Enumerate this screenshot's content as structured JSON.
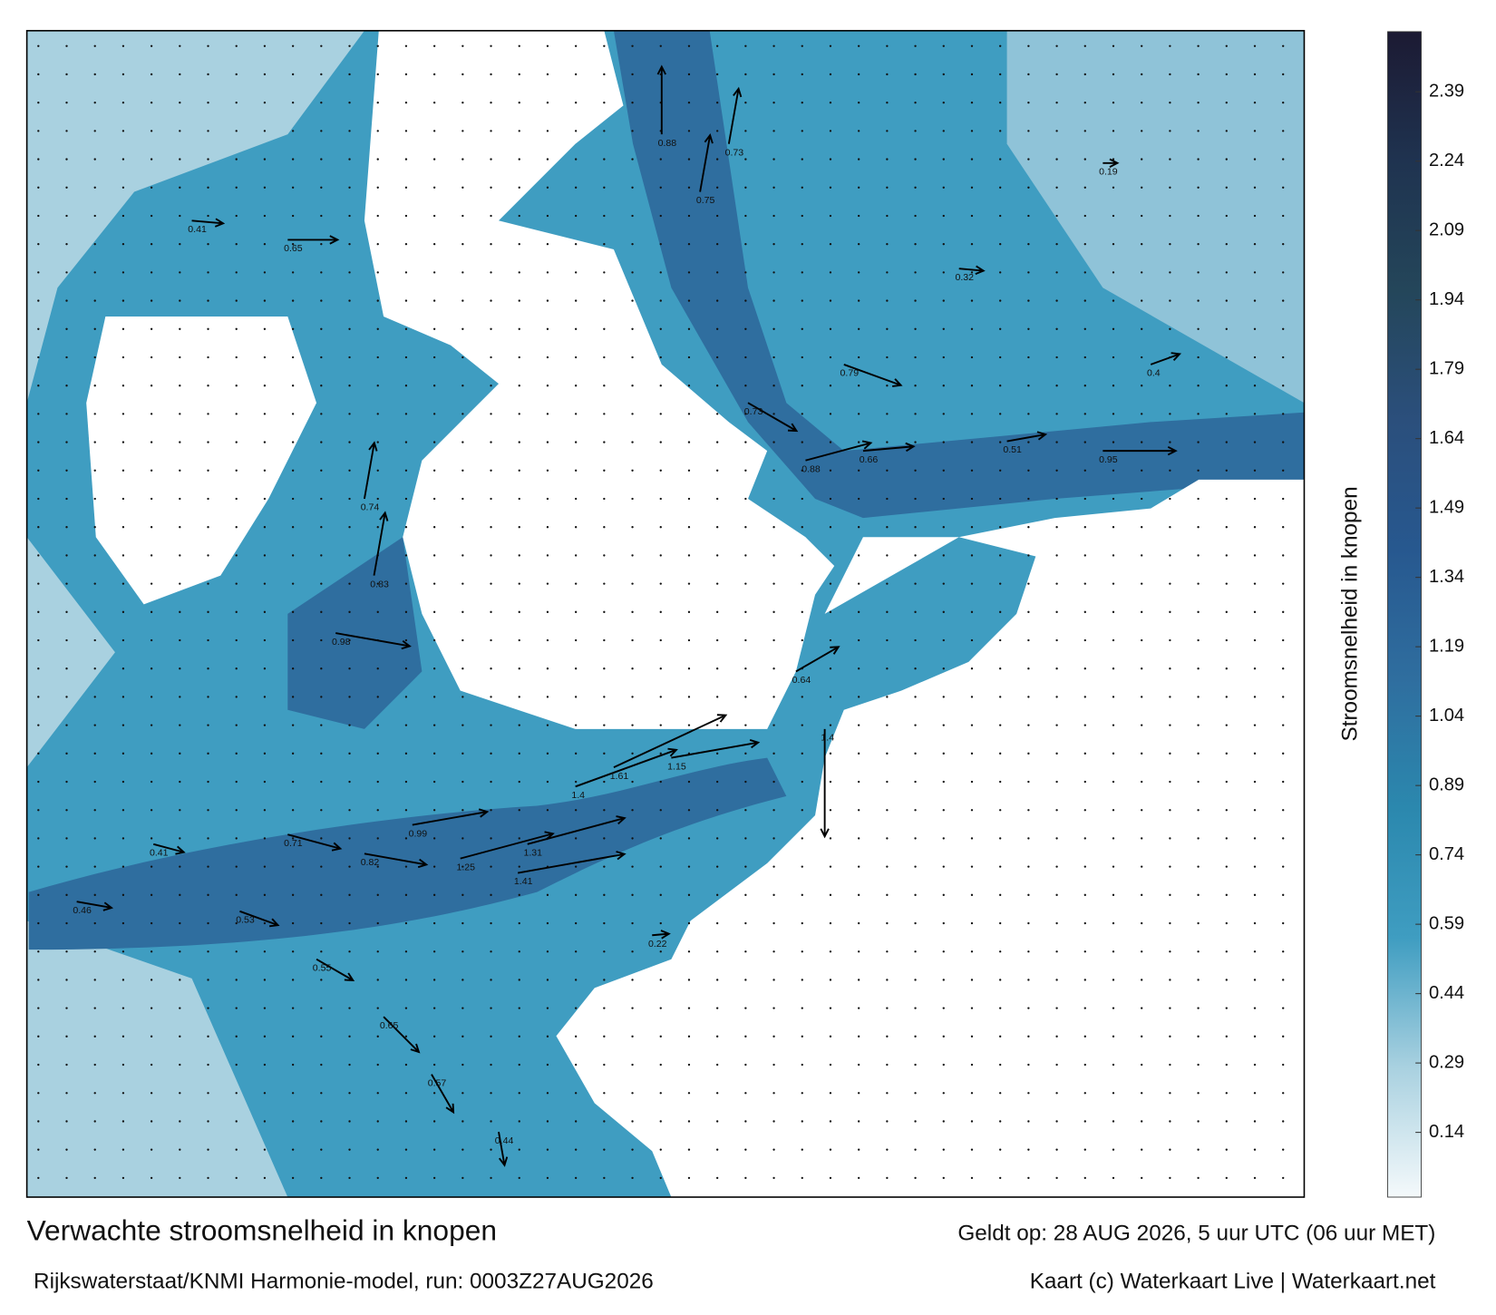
{
  "title": "Verwachte stroomsnelheid in knopen",
  "subtitle": "Rijkswaterstaat/KNMI Harmonie-model, run: 0003Z27AUG2026",
  "valid": "Geldt op: 28 AUG 2026, 5 uur UTC (06 uur MET)",
  "credit": "Kaart (c) Waterkaart Live | Waterkaart.net",
  "colorbar": {
    "label": "Stroomsnelheid in knopen",
    "lim": [
      0,
      2.52
    ],
    "ticks": [
      0.14,
      0.29,
      0.44,
      0.59,
      0.74,
      0.89,
      1.04,
      1.19,
      1.34,
      1.49,
      1.64,
      1.79,
      1.94,
      2.09,
      2.24,
      2.39
    ],
    "colors": [
      "#f4f9fb",
      "#a9d1e0",
      "#3f9dc1",
      "#2b88ae",
      "#2f6e9f",
      "#27588f",
      "#2b4f7c",
      "#24465a",
      "#1f3350",
      "#1c1a33"
    ]
  },
  "currents": [
    1.25,
    1.31,
    1.41,
    1.4,
    1.61,
    1.15,
    0.99,
    0.82,
    0.71,
    0.41,
    0.46,
    0.53,
    0.55,
    0.65,
    0.57,
    0.44,
    0.88,
    0.66,
    0.51,
    0.95,
    0.73,
    0.79,
    0.75,
    0.73,
    0.88,
    0.74,
    0.83,
    0.98,
    0.65,
    0.41,
    1.4,
    0.64,
    0.32,
    0.4,
    0.22,
    0.19
  ]
}
